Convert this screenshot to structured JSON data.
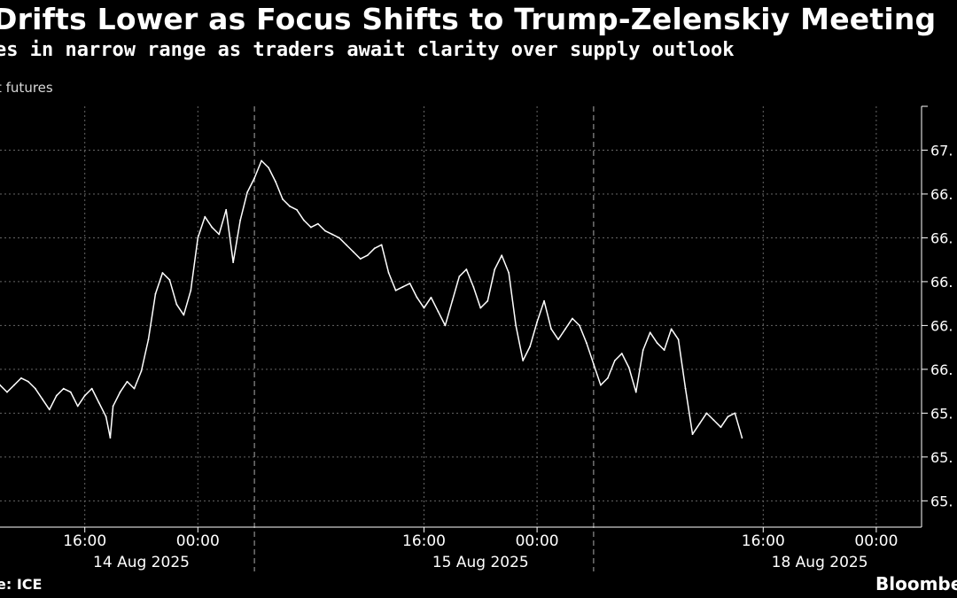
{
  "header": {
    "title": "Drifts Lower as Focus Shifts to Trump-Zelenskiy Meeting",
    "subtitle": "es in narrow range as traders await clarity over supply outlook",
    "series_label": "t futures"
  },
  "footer": {
    "source": "e: ICE",
    "brand": "Bloombe"
  },
  "colors": {
    "background": "#000000",
    "line": "#ffffff",
    "grid": "#666666"
  },
  "chart_data": {
    "type": "line",
    "ylim": [
      65.05,
      67.45
    ],
    "grid": true,
    "y_axis_position": "right",
    "y_tick_labels": [
      "67.",
      "66.",
      "66.",
      "66.",
      "66.",
      "66.",
      "65.",
      "65.",
      "65."
    ],
    "y_tick_values": [
      67.2,
      66.95,
      66.7,
      66.45,
      66.2,
      65.95,
      65.7,
      65.45,
      65.2
    ],
    "x_tick_labels": [
      "16:00",
      "00:00",
      "16:00",
      "00:00",
      "16:00",
      "00:00"
    ],
    "x_tick_hours": [
      16,
      24,
      40,
      48,
      64,
      72
    ],
    "x_date_labels": [
      {
        "label": "14 Aug 2025",
        "hour": 20
      },
      {
        "label": "15 Aug 2025",
        "hour": 44
      },
      {
        "label": "18 Aug 2025",
        "hour": 68
      }
    ],
    "session_breaks_hours": [
      28,
      52
    ],
    "series": [
      {
        "points": [
          [
            10.0,
            65.86
          ],
          [
            10.5,
            65.82
          ],
          [
            11.0,
            65.86
          ],
          [
            11.5,
            65.9
          ],
          [
            12.0,
            65.88
          ],
          [
            12.5,
            65.84
          ],
          [
            13.0,
            65.78
          ],
          [
            13.5,
            65.72
          ],
          [
            14.0,
            65.8
          ],
          [
            14.5,
            65.84
          ],
          [
            15.0,
            65.82
          ],
          [
            15.5,
            65.74
          ],
          [
            16.0,
            65.8
          ],
          [
            16.5,
            65.84
          ],
          [
            17.0,
            65.76
          ],
          [
            17.5,
            65.68
          ],
          [
            17.8,
            65.56
          ],
          [
            18.0,
            65.74
          ],
          [
            18.5,
            65.82
          ],
          [
            19.0,
            65.88
          ],
          [
            19.5,
            65.84
          ],
          [
            20.0,
            65.94
          ],
          [
            20.5,
            66.12
          ],
          [
            21.0,
            66.38
          ],
          [
            21.5,
            66.5
          ],
          [
            22.0,
            66.46
          ],
          [
            22.5,
            66.32
          ],
          [
            23.0,
            66.26
          ],
          [
            23.5,
            66.4
          ],
          [
            24.0,
            66.7
          ],
          [
            24.5,
            66.82
          ],
          [
            25.0,
            66.76
          ],
          [
            25.5,
            66.72
          ],
          [
            26.0,
            66.86
          ],
          [
            26.5,
            66.56
          ],
          [
            27.0,
            66.8
          ],
          [
            27.5,
            66.96
          ],
          [
            28.0,
            67.04
          ],
          [
            28.5,
            67.14
          ],
          [
            29.0,
            67.1
          ],
          [
            29.5,
            67.02
          ],
          [
            30.0,
            66.92
          ],
          [
            30.5,
            66.88
          ],
          [
            31.0,
            66.86
          ],
          [
            31.5,
            66.8
          ],
          [
            32.0,
            66.76
          ],
          [
            32.5,
            66.78
          ],
          [
            33.0,
            66.74
          ],
          [
            33.5,
            66.72
          ],
          [
            34.0,
            66.7
          ],
          [
            34.5,
            66.66
          ],
          [
            35.0,
            66.62
          ],
          [
            35.5,
            66.58
          ],
          [
            36.0,
            66.6
          ],
          [
            36.5,
            66.64
          ],
          [
            37.0,
            66.66
          ],
          [
            37.5,
            66.5
          ],
          [
            38.0,
            66.4
          ],
          [
            38.5,
            66.42
          ],
          [
            39.0,
            66.44
          ],
          [
            39.5,
            66.36
          ],
          [
            40.0,
            66.3
          ],
          [
            40.5,
            66.36
          ],
          [
            41.0,
            66.28
          ],
          [
            41.5,
            66.2
          ],
          [
            42.0,
            66.34
          ],
          [
            42.5,
            66.48
          ],
          [
            43.0,
            66.52
          ],
          [
            43.5,
            66.42
          ],
          [
            44.0,
            66.3
          ],
          [
            44.5,
            66.34
          ],
          [
            45.0,
            66.52
          ],
          [
            45.5,
            66.6
          ],
          [
            46.0,
            66.5
          ],
          [
            46.5,
            66.2
          ],
          [
            47.0,
            66.0
          ],
          [
            47.5,
            66.08
          ],
          [
            48.0,
            66.22
          ],
          [
            48.5,
            66.34
          ],
          [
            49.0,
            66.18
          ],
          [
            49.5,
            66.12
          ],
          [
            50.0,
            66.18
          ],
          [
            50.5,
            66.24
          ],
          [
            51.0,
            66.2
          ],
          [
            51.5,
            66.1
          ],
          [
            52.0,
            65.98
          ],
          [
            52.5,
            65.86
          ],
          [
            53.0,
            65.9
          ],
          [
            53.5,
            66.0
          ],
          [
            54.0,
            66.04
          ],
          [
            54.5,
            65.96
          ],
          [
            55.0,
            65.82
          ],
          [
            55.5,
            66.06
          ],
          [
            56.0,
            66.16
          ],
          [
            56.5,
            66.1
          ],
          [
            57.0,
            66.06
          ],
          [
            57.5,
            66.18
          ],
          [
            58.0,
            66.12
          ],
          [
            58.5,
            65.84
          ],
          [
            59.0,
            65.58
          ],
          [
            59.5,
            65.64
          ],
          [
            60.0,
            65.7
          ],
          [
            60.5,
            65.66
          ],
          [
            61.0,
            65.62
          ],
          [
            61.5,
            65.68
          ],
          [
            62.0,
            65.7
          ],
          [
            62.5,
            65.56
          ]
        ]
      }
    ]
  }
}
